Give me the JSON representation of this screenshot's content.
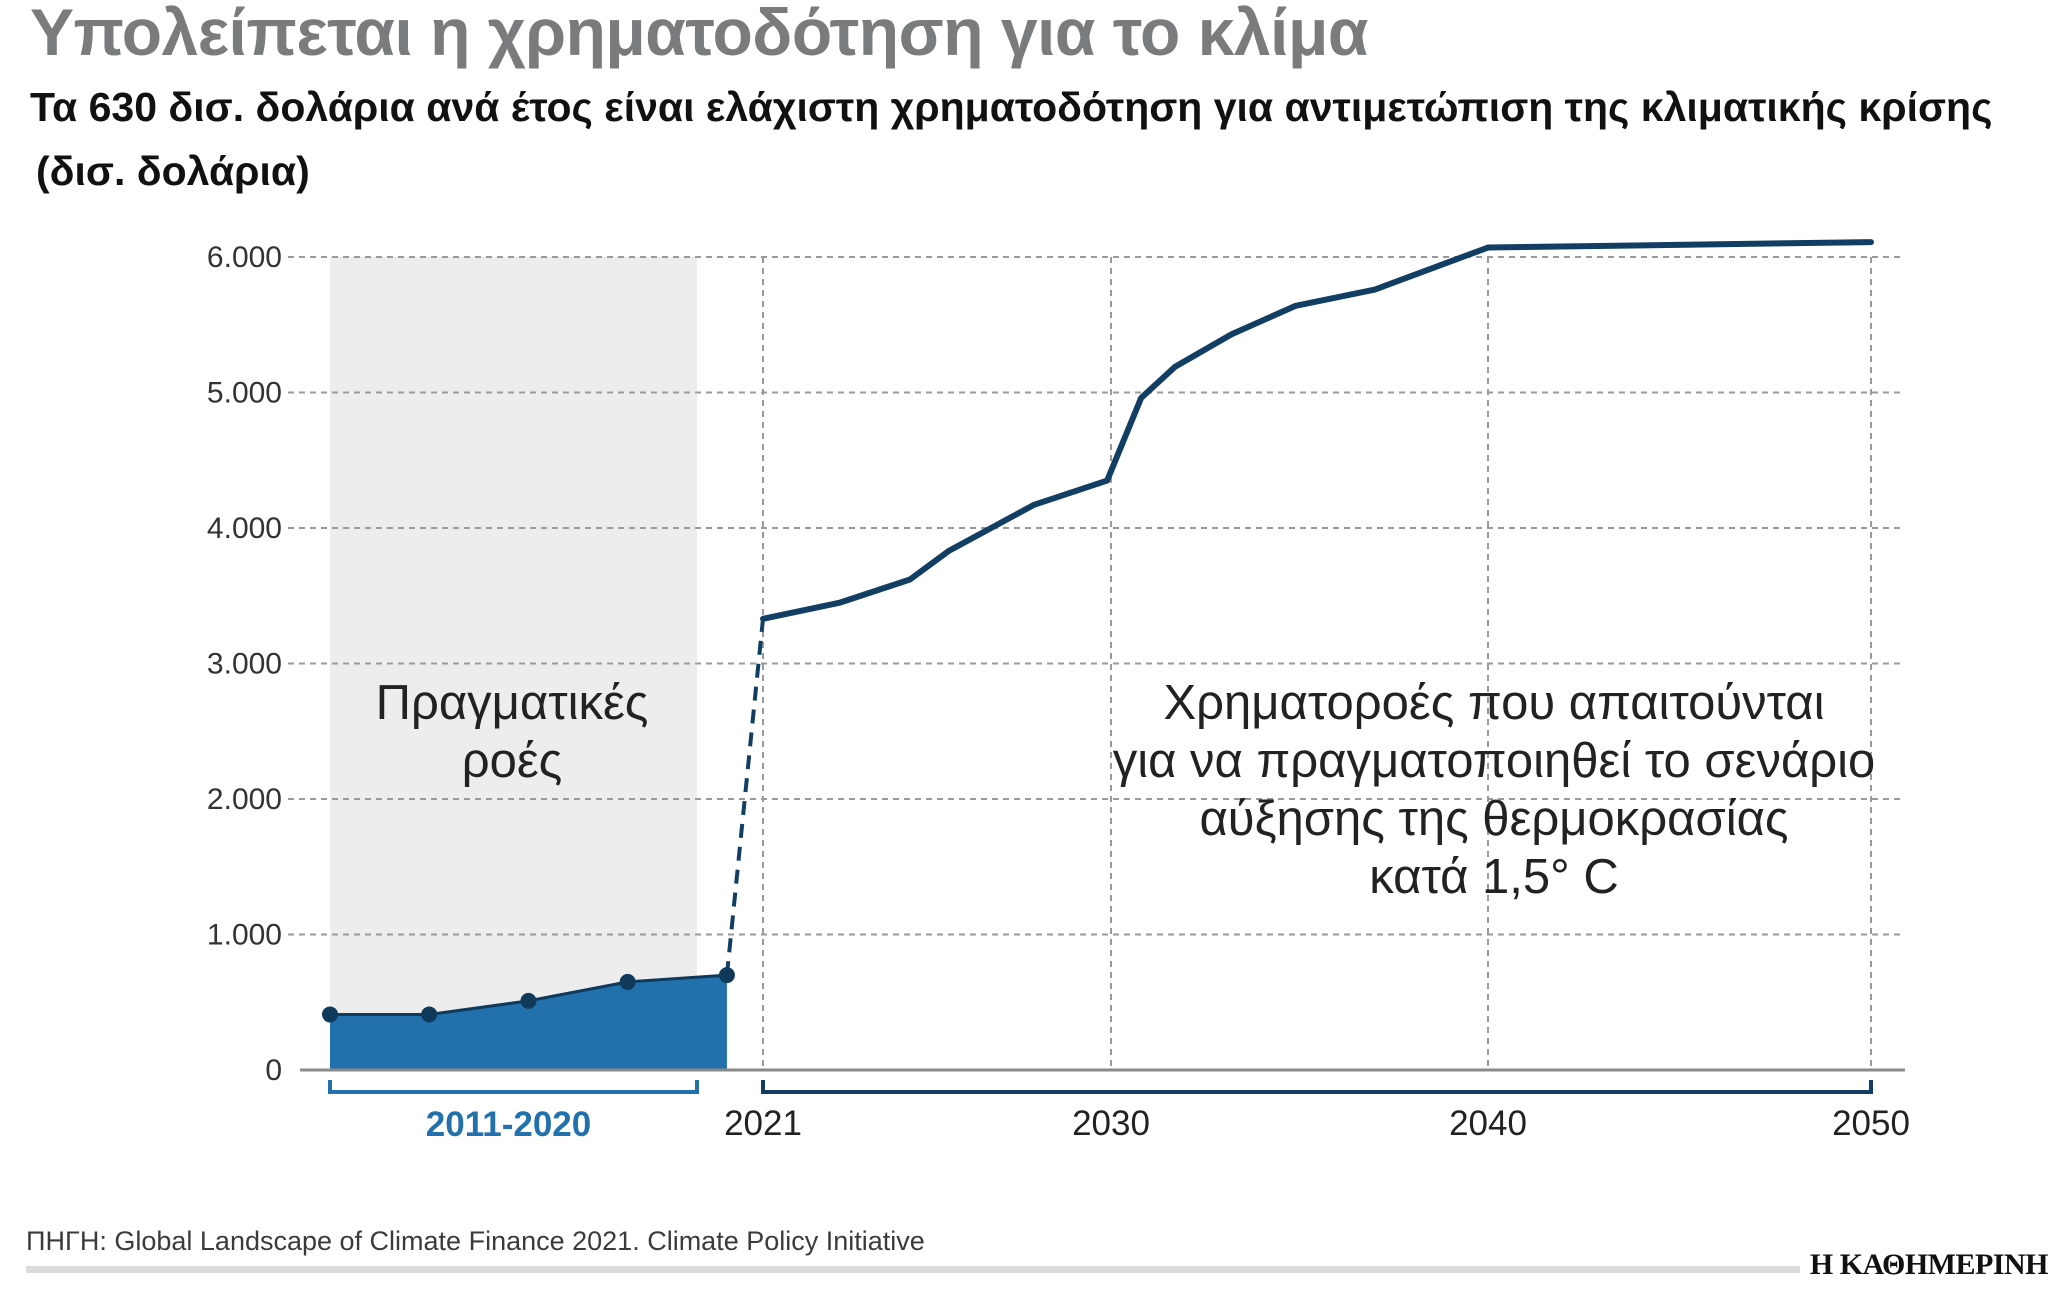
{
  "header": {
    "title": "Υπολείπεται η χρηματοδότηση για το κλίμα",
    "subtitle": "Τα 630 δισ. δολάρια ανά έτος είναι ελάχιστη χρηματοδότηση για αντιμετώπιση της κλιματικής κρίσης",
    "unit": "(δισ. δολάρια)"
  },
  "footer": {
    "source": "ΠΗΓΗ: Global Landscape of Climate Finance 2021. Climate Policy Initiative",
    "logo": "Η ΚΑΘΗΜΕΡΙΝΗ"
  },
  "colors": {
    "actual_fill": "#2271ad",
    "actual_line": "#0f3a5c",
    "required_line": "#123e63",
    "shade": "#ecedec",
    "grid": "#9a9a9a",
    "axis": "#8a8a8a",
    "period_label": "#2271ad"
  },
  "chart_data": {
    "type": "line",
    "title": "Υπολείπεται η χρηματοδότηση για το κλίμα",
    "ylabel": "δισ. δολάρια",
    "ylim": [
      0,
      6000
    ],
    "yticks": [
      0,
      1000,
      2000,
      3000,
      4000,
      5000,
      6000
    ],
    "ytick_labels": [
      "0",
      "1.000",
      "2.000",
      "3.000",
      "4.000",
      "5.000",
      "6.000"
    ],
    "grid": true,
    "x_tick_labels": [
      "2021",
      "2030",
      "2040",
      "2050"
    ],
    "x_ticks": [
      2021,
      2030,
      2040,
      2050
    ],
    "series": [
      {
        "name": "Πραγματικές ροές",
        "period_label": "2011-2020",
        "style": "area-with-markers",
        "x": [
          2011.4,
          2013.6,
          2015.8,
          2018.0,
          2020.2
        ],
        "values": [
          410,
          410,
          510,
          650,
          700
        ]
      },
      {
        "name": "Χρηματοροές που απαιτούνται",
        "style": "line",
        "x": [
          2021.0,
          2023.0,
          2024.8,
          2025.8,
          2028.0,
          2029.9,
          2030.8,
          2031.7,
          2033.2,
          2034.9,
          2037.0,
          2040.0,
          2050.0
        ],
        "values": [
          3330,
          3450,
          3620,
          3830,
          4170,
          4350,
          4960,
          5190,
          5430,
          5640,
          5760,
          6070,
          6110
        ]
      }
    ],
    "connector": {
      "style": "dashed",
      "from": [
        2020.2,
        700
      ],
      "to": [
        2021.0,
        3330
      ]
    },
    "annotations": [
      {
        "lines": [
          "Πραγματικές",
          "ροές"
        ]
      },
      {
        "lines": [
          "Χρηματοροές που απαιτούνται",
          "για να πραγματοποιηθεί το σενάριο",
          "αύξησης της θερμοκρασίας",
          "κατά 1,5° C"
        ]
      }
    ]
  }
}
